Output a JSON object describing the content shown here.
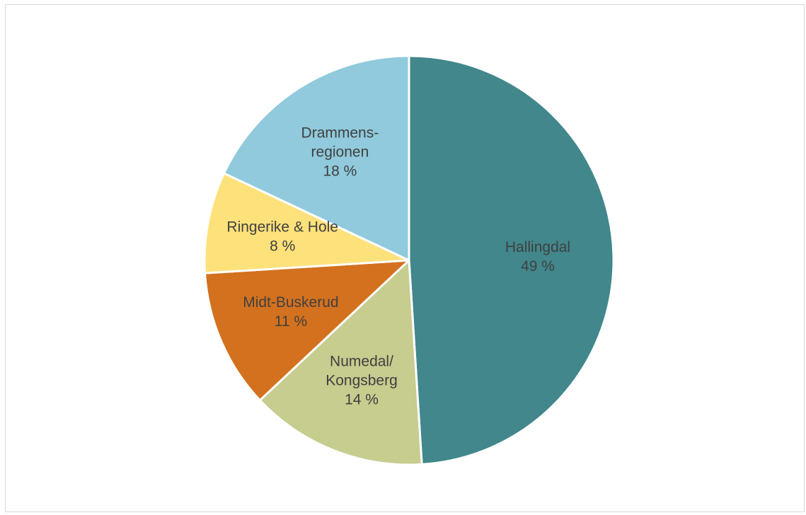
{
  "chart_data": {
    "type": "pie",
    "title": "",
    "categories": [
      "Hallingdal",
      "Numedal/ Kongsberg",
      "Midt-Buskerud",
      "Ringerike & Hole",
      "Drammens- regionen"
    ],
    "values": [
      49,
      14,
      11,
      8,
      18
    ],
    "unit": "%",
    "legend": "none",
    "colors": [
      "#41878c",
      "#c7cc8f",
      "#d3711e",
      "#fde17a",
      "#90cadc"
    ],
    "slices": [
      {
        "name": "Hallingdal",
        "value": 49,
        "label_lines": [
          "Hallingdal",
          "49 %"
        ],
        "color": "#41878c"
      },
      {
        "name": "Numedal/ Kongsberg",
        "value": 14,
        "label_lines": [
          "Numedal/",
          "Kongsberg",
          "14 %"
        ],
        "color": "#c7cc8f"
      },
      {
        "name": "Midt-Buskerud",
        "value": 11,
        "label_lines": [
          "Midt-Buskerud",
          "11 %"
        ],
        "color": "#d3711e"
      },
      {
        "name": "Ringerike & Hole",
        "value": 8,
        "label_lines": [
          "Ringerike & Hole",
          "8 %"
        ],
        "color": "#fde17a"
      },
      {
        "name": "Drammens- regionen",
        "value": 18,
        "label_lines": [
          "Drammens-",
          "regionen",
          "18 %"
        ],
        "color": "#90cadc"
      }
    ]
  }
}
